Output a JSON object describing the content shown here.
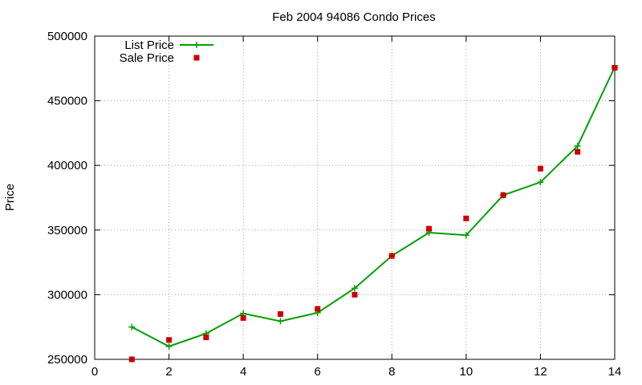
{
  "colors": {
    "list_price": "#00a000",
    "sale_price": "#cc0000",
    "grid": "#a0a0a0",
    "axis": "#000000"
  },
  "chart_data": {
    "type": "line",
    "title": "Feb 2004 94086 Condo Prices",
    "xlabel": "",
    "ylabel": "Price",
    "xlim": [
      0,
      14
    ],
    "ylim": [
      250000,
      500000
    ],
    "xticks": [
      0,
      2,
      4,
      6,
      8,
      10,
      12,
      14
    ],
    "yticks": [
      250000,
      300000,
      350000,
      400000,
      450000,
      500000
    ],
    "grid": true,
    "legend_position": "top-left",
    "series": [
      {
        "name": "List Price",
        "style": "line-with-plus-markers",
        "color": "#00a000",
        "x": [
          1,
          2,
          3,
          4,
          5,
          6,
          7,
          8,
          9,
          10,
          11,
          12,
          13,
          14
        ],
        "y": [
          275000,
          260000,
          270000,
          285500,
          279500,
          286000,
          305000,
          330000,
          348000,
          346000,
          377000,
          387000,
          415000,
          476000
        ]
      },
      {
        "name": "Sale Price",
        "style": "square-points",
        "color": "#cc0000",
        "x": [
          1,
          2,
          3,
          4,
          5,
          6,
          7,
          8,
          9,
          10,
          11,
          12,
          13,
          14
        ],
        "y": [
          250000,
          265000,
          267000,
          282000,
          285000,
          289000,
          300000,
          330000,
          351000,
          359000,
          377000,
          397500,
          410500,
          475500
        ]
      }
    ]
  }
}
